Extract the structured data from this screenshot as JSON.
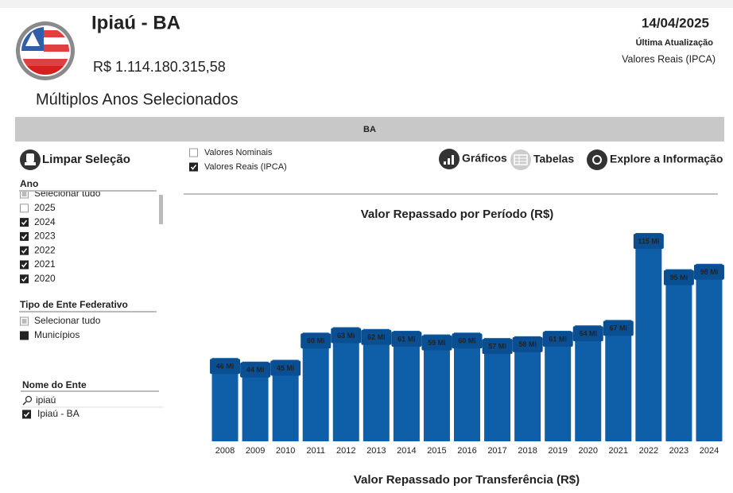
{
  "header": {
    "title": "Ipiaú - BA",
    "amount": "R$ 1.114.180.315,58",
    "subtitle": "Múltiplos Anos Selecionados",
    "date": "14/04/2025",
    "update_label": "Última Atualização",
    "values_mode": "Valores Reais (IPCA)"
  },
  "banner": "BA",
  "buttons": {
    "clear": "Limpar Seleção",
    "charts": "Gráficos",
    "tables": "Tabelas",
    "explore": "Explore a Informação"
  },
  "legend": {
    "items": [
      "Valores Nominais",
      "Valores Reais (IPCA)"
    ],
    "states": [
      "none",
      "checked"
    ]
  },
  "filters": {
    "year": {
      "title": "Ano",
      "options": [
        "Selecionar tudo",
        "2025",
        "2024",
        "2023",
        "2022",
        "2021",
        "2020"
      ],
      "states": [
        "partial",
        "none",
        "checked",
        "checked",
        "checked",
        "checked",
        "checked"
      ]
    },
    "entity_type": {
      "title": "Tipo de Ente Federativo",
      "options": [
        "Selecionar tudo",
        "Municípios"
      ],
      "states": [
        "partial",
        "filled"
      ]
    },
    "entity_name": {
      "title": "Nome do Ente",
      "search": "ipiaú",
      "options": [
        "Ipiaú - BA"
      ],
      "states": [
        "checked"
      ]
    }
  },
  "chart_data": {
    "type": "bar",
    "title": "Valor Repassado por Período (R$)",
    "categories": [
      "2008",
      "2009",
      "2010",
      "2011",
      "2012",
      "2013",
      "2014",
      "2015",
      "2016",
      "2017",
      "2018",
      "2019",
      "2020",
      "2021",
      "2022",
      "2023",
      "2024"
    ],
    "values": [
      46,
      44,
      45,
      60,
      63,
      62,
      61,
      59,
      60,
      57,
      58,
      61,
      64,
      67,
      115,
      95,
      98
    ],
    "value_labels": [
      "46 Mi",
      "44 Mi",
      "45 Mi",
      "60 Mi",
      "63 Mi",
      "62 Mi",
      "61 Mi",
      "59 Mi",
      "60 Mi",
      "57 Mi",
      "58 Mi",
      "61 Mi",
      "64 Mi",
      "67 Mi",
      "115 Mi",
      "95 Mi",
      "98 Mi"
    ],
    "color": "#0f5ea8"
  },
  "footer_title": "Valor Repassado por Transferência (R$)"
}
